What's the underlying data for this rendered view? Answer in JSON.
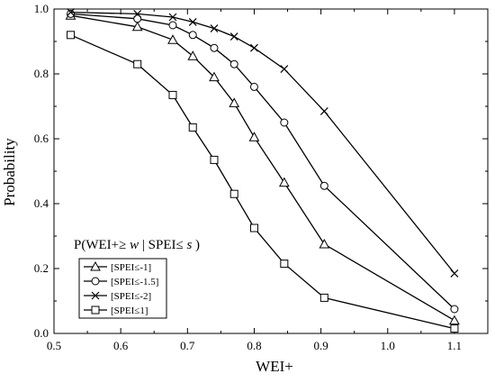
{
  "chart_data": {
    "type": "line",
    "title": "",
    "xlabel": "WEI+",
    "ylabel": "Probability",
    "xlim": [
      0.5,
      1.15
    ],
    "ylim": [
      0.0,
      1.0
    ],
    "grid": false,
    "xticks": [
      0.5,
      0.6,
      0.7,
      0.8,
      0.9,
      1.0,
      1.1
    ],
    "xtick_labels": [
      "0.5",
      "0.6",
      "0.7",
      "0.8",
      "0.9",
      "1.0",
      "1.1"
    ],
    "yticks": [
      0.0,
      0.2,
      0.4,
      0.6,
      0.8,
      1.0
    ],
    "ytick_labels": [
      "0.0",
      "0.2",
      "0.4",
      "0.6",
      "0.8",
      "1.0"
    ],
    "annotation": {
      "prefix": "P(WEI+≥ ",
      "w": "w",
      "mid": " | SPEI≤ ",
      "s": "s",
      "suffix": ")"
    },
    "legend": {
      "position": "bottom-left"
    },
    "series": [
      {
        "name": "[SPEI≤-1]",
        "marker": "triangle",
        "x": [
          0.525,
          0.625,
          0.678,
          0.708,
          0.74,
          0.77,
          0.8,
          0.845,
          0.905,
          1.1
        ],
        "values": [
          0.98,
          0.945,
          0.905,
          0.855,
          0.79,
          0.71,
          0.605,
          0.465,
          0.275,
          0.04
        ]
      },
      {
        "name": "[SPEI≤-1.5]",
        "marker": "circle",
        "x": [
          0.525,
          0.625,
          0.678,
          0.708,
          0.74,
          0.77,
          0.8,
          0.845,
          0.905,
          1.1
        ],
        "values": [
          0.985,
          0.97,
          0.95,
          0.92,
          0.88,
          0.83,
          0.76,
          0.65,
          0.455,
          0.075
        ]
      },
      {
        "name": "[SPEI≤-2]",
        "marker": "x",
        "x": [
          0.525,
          0.625,
          0.678,
          0.708,
          0.74,
          0.77,
          0.8,
          0.845,
          0.905,
          1.1
        ],
        "values": [
          0.99,
          0.985,
          0.975,
          0.96,
          0.94,
          0.915,
          0.88,
          0.815,
          0.685,
          0.185
        ]
      },
      {
        "name": "[SPEI≤1]",
        "marker": "square",
        "x": [
          0.525,
          0.625,
          0.678,
          0.708,
          0.74,
          0.77,
          0.8,
          0.845,
          0.905,
          1.1
        ],
        "values": [
          0.92,
          0.83,
          0.735,
          0.635,
          0.535,
          0.43,
          0.325,
          0.215,
          0.11,
          0.015
        ]
      }
    ]
  }
}
